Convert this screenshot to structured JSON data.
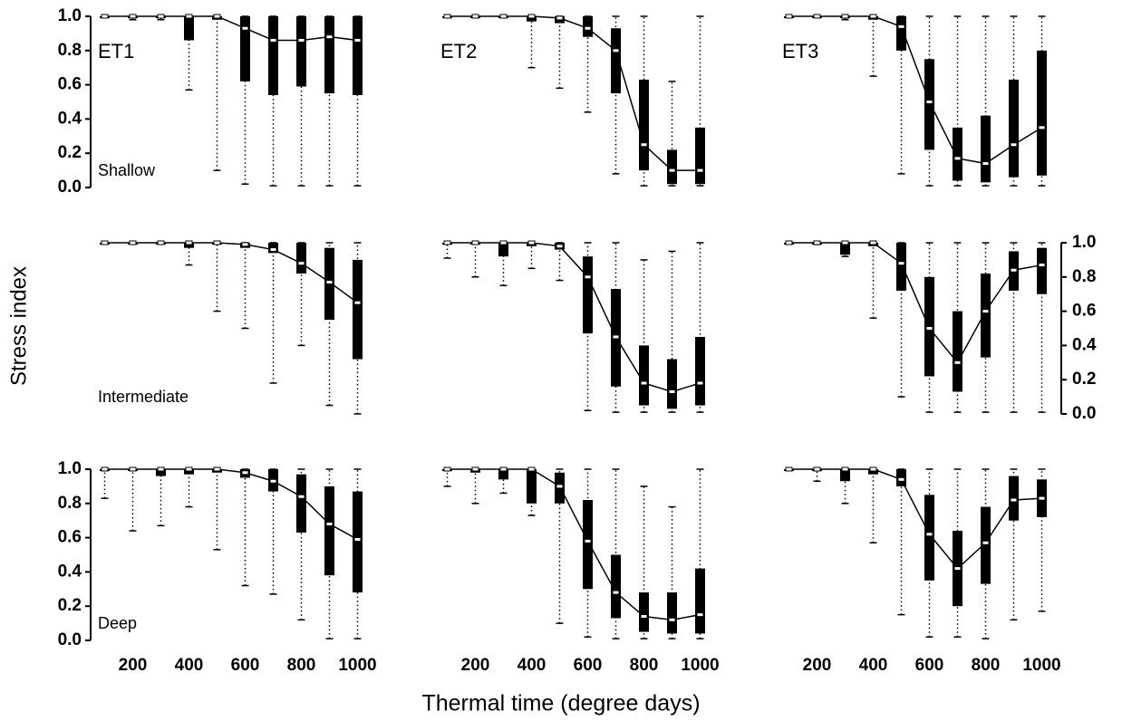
{
  "xlabel": "Thermal time (degree days)",
  "ylabel": "Stress index",
  "chart_data": [
    {
      "type": "box",
      "title": "ET1",
      "annotation": "Shallow",
      "x": [
        100,
        200,
        300,
        400,
        500,
        600,
        700,
        800,
        900,
        1000
      ],
      "median": [
        1,
        1,
        1,
        1,
        1,
        0.93,
        0.86,
        0.86,
        0.88,
        0.86
      ],
      "q1": [
        1,
        0.99,
        0.99,
        0.86,
        0.98,
        0.62,
        0.54,
        0.59,
        0.55,
        0.54
      ],
      "q3": [
        1,
        1,
        1,
        1,
        1,
        1,
        1,
        1,
        1,
        1
      ],
      "whisker_low": [
        1,
        0.98,
        0.98,
        0.57,
        0.1,
        0.02,
        0.01,
        0.01,
        0.01,
        0.01
      ],
      "whisker_high": [
        1,
        1,
        1,
        1,
        1,
        1,
        1,
        1,
        1,
        1
      ],
      "xlim": [
        50,
        1050
      ],
      "ylim": [
        0,
        1
      ],
      "yticks": [
        {
          "value": 0,
          "label": "0.0"
        },
        {
          "value": 0.2,
          "label": "0.2"
        },
        {
          "value": 0.4,
          "label": "0.4"
        },
        {
          "value": 0.6,
          "label": "0.6"
        },
        {
          "value": 0.8,
          "label": "0.8"
        },
        {
          "value": 1,
          "label": "1.0"
        }
      ],
      "yaxis_side": "left"
    },
    {
      "type": "box",
      "title": "ET2",
      "x": [
        100,
        200,
        300,
        400,
        500,
        600,
        700,
        800,
        900,
        1000
      ],
      "median": [
        1,
        1,
        1,
        1,
        0.99,
        0.93,
        0.8,
        0.25,
        0.1,
        0.1
      ],
      "q1": [
        1,
        1,
        1,
        0.97,
        0.96,
        0.88,
        0.55,
        0.1,
        0.02,
        0.02
      ],
      "q3": [
        1,
        1,
        1,
        1,
        1,
        1,
        0.93,
        0.63,
        0.22,
        0.35
      ],
      "whisker_low": [
        1,
        1,
        1,
        0.7,
        0.58,
        0.44,
        0.08,
        0.01,
        0.01,
        0.01
      ],
      "whisker_high": [
        1,
        1,
        1,
        1,
        1,
        1,
        1,
        1,
        0.62,
        1
      ],
      "xlim": [
        50,
        1050
      ],
      "ylim": [
        0,
        1
      ]
    },
    {
      "type": "box",
      "title": "ET3",
      "x": [
        100,
        200,
        300,
        400,
        500,
        600,
        700,
        800,
        900,
        1000
      ],
      "median": [
        1,
        1,
        1,
        1,
        0.94,
        0.5,
        0.17,
        0.14,
        0.25,
        0.35
      ],
      "q1": [
        1,
        1,
        0.99,
        0.98,
        0.8,
        0.22,
        0.04,
        0.03,
        0.06,
        0.07
      ],
      "q3": [
        1,
        1,
        1,
        1,
        1,
        0.75,
        0.35,
        0.42,
        0.63,
        0.8
      ],
      "whisker_low": [
        1,
        1,
        0.98,
        0.65,
        0.08,
        0.01,
        0.01,
        0.01,
        0.01,
        0.01
      ],
      "whisker_high": [
        1,
        1,
        1,
        1,
        1,
        1,
        1,
        1,
        1,
        1
      ],
      "xlim": [
        50,
        1050
      ],
      "ylim": [
        0,
        1
      ]
    },
    {
      "type": "box",
      "annotation": "Intermediate",
      "x": [
        100,
        200,
        300,
        400,
        500,
        600,
        700,
        800,
        900,
        1000
      ],
      "median": [
        1,
        1,
        1,
        1,
        1,
        0.99,
        0.96,
        0.88,
        0.77,
        0.65
      ],
      "q1": [
        1,
        1,
        1,
        0.97,
        0.99,
        0.97,
        0.94,
        0.82,
        0.55,
        0.32
      ],
      "q3": [
        1,
        1,
        1,
        1,
        1,
        1,
        1,
        1,
        0.97,
        0.9
      ],
      "whisker_low": [
        1,
        1,
        1,
        0.87,
        0.6,
        0.5,
        0.18,
        0.4,
        0.05,
        0
      ],
      "whisker_high": [
        1,
        1,
        1,
        1,
        1,
        1,
        1,
        1,
        1,
        1
      ],
      "xlim": [
        50,
        1050
      ],
      "ylim": [
        0,
        1
      ]
    },
    {
      "type": "box",
      "x": [
        100,
        200,
        300,
        400,
        500,
        600,
        700,
        800,
        900,
        1000
      ],
      "median": [
        1,
        1,
        1,
        1,
        0.98,
        0.8,
        0.45,
        0.18,
        0.13,
        0.18
      ],
      "q1": [
        1,
        1,
        0.92,
        0.98,
        0.96,
        0.47,
        0.16,
        0.05,
        0.03,
        0.05
      ],
      "q3": [
        1,
        1,
        1,
        1,
        1,
        0.92,
        0.73,
        0.4,
        0.32,
        0.45
      ],
      "whisker_low": [
        0.91,
        0.8,
        0.75,
        0.85,
        0.78,
        0.02,
        0.01,
        0.01,
        0.01,
        0.01
      ],
      "whisker_high": [
        1,
        1,
        1,
        1,
        1,
        1,
        1,
        0.9,
        0.95,
        1
      ],
      "xlim": [
        50,
        1050
      ],
      "ylim": [
        0,
        1
      ]
    },
    {
      "type": "box",
      "x": [
        100,
        200,
        300,
        400,
        500,
        600,
        700,
        800,
        900,
        1000
      ],
      "median": [
        1,
        1,
        1,
        1,
        0.88,
        0.5,
        0.3,
        0.6,
        0.84,
        0.87
      ],
      "q1": [
        1,
        0.99,
        0.93,
        0.98,
        0.72,
        0.22,
        0.13,
        0.33,
        0.72,
        0.7
      ],
      "q3": [
        1,
        1,
        1,
        1,
        1,
        0.8,
        0.6,
        0.82,
        0.95,
        0.97
      ],
      "whisker_low": [
        1,
        0.99,
        0.92,
        0.56,
        0.1,
        0.01,
        0.01,
        0.01,
        0.01,
        0.01
      ],
      "whisker_high": [
        1,
        1,
        1,
        1,
        1,
        1,
        1,
        1,
        1,
        1
      ],
      "xlim": [
        50,
        1050
      ],
      "ylim": [
        0,
        1
      ],
      "yticks": [
        {
          "value": 0,
          "label": "0.0"
        },
        {
          "value": 0.2,
          "label": "0.2"
        },
        {
          "value": 0.4,
          "label": "0.4"
        },
        {
          "value": 0.6,
          "label": "0.6"
        },
        {
          "value": 0.8,
          "label": "0.8"
        },
        {
          "value": 1,
          "label": "1.0"
        }
      ],
      "yaxis_side": "right"
    },
    {
      "type": "box",
      "annotation": "Deep",
      "x": [
        100,
        200,
        300,
        400,
        500,
        600,
        700,
        800,
        900,
        1000
      ],
      "median": [
        1,
        1,
        1,
        1,
        1,
        0.98,
        0.93,
        0.84,
        0.68,
        0.59
      ],
      "q1": [
        1,
        1,
        0.96,
        0.97,
        0.98,
        0.95,
        0.87,
        0.63,
        0.38,
        0.28
      ],
      "q3": [
        1,
        1,
        1,
        1,
        1,
        1,
        1,
        0.97,
        0.9,
        0.87
      ],
      "whisker_low": [
        0.83,
        0.64,
        0.67,
        0.78,
        0.53,
        0.32,
        0.27,
        0.12,
        0.01,
        0.01
      ],
      "whisker_high": [
        1,
        1,
        1,
        1,
        1,
        1,
        1,
        1,
        1,
        1
      ],
      "xlim": [
        50,
        1050
      ],
      "ylim": [
        0,
        1
      ],
      "yticks": [
        {
          "value": 0,
          "label": "0.0"
        },
        {
          "value": 0.2,
          "label": "0.2"
        },
        {
          "value": 0.4,
          "label": "0.4"
        },
        {
          "value": 0.6,
          "label": "0.6"
        },
        {
          "value": 0.8,
          "label": "0.8"
        },
        {
          "value": 1,
          "label": "1.0"
        }
      ],
      "yaxis_side": "left",
      "xticks": [
        200,
        400,
        600,
        800,
        1000
      ]
    },
    {
      "type": "box",
      "x": [
        100,
        200,
        300,
        400,
        500,
        600,
        700,
        800,
        900,
        1000
      ],
      "median": [
        1,
        1,
        1,
        1,
        0.9,
        0.58,
        0.28,
        0.14,
        0.12,
        0.15
      ],
      "q1": [
        1,
        0.98,
        0.94,
        0.8,
        0.8,
        0.3,
        0.13,
        0.05,
        0.04,
        0.04
      ],
      "q3": [
        1,
        1,
        1,
        1,
        0.98,
        0.82,
        0.5,
        0.28,
        0.28,
        0.42
      ],
      "whisker_low": [
        0.9,
        0.8,
        0.86,
        0.73,
        0.1,
        0.02,
        0.01,
        0.01,
        0.01,
        0.01
      ],
      "whisker_high": [
        1,
        1,
        1,
        1,
        1,
        1,
        1,
        0.9,
        0.78,
        1
      ],
      "xlim": [
        50,
        1050
      ],
      "ylim": [
        0,
        1
      ],
      "xticks": [
        200,
        400,
        600,
        800,
        1000
      ]
    },
    {
      "type": "box",
      "x": [
        100,
        200,
        300,
        400,
        500,
        600,
        700,
        800,
        900,
        1000
      ],
      "median": [
        1,
        1,
        1,
        1,
        0.94,
        0.62,
        0.42,
        0.57,
        0.82,
        0.83
      ],
      "q1": [
        1,
        1,
        0.93,
        0.97,
        0.9,
        0.35,
        0.2,
        0.33,
        0.7,
        0.72
      ],
      "q3": [
        1,
        1,
        1,
        1,
        1,
        0.85,
        0.64,
        0.78,
        0.96,
        0.94
      ],
      "whisker_low": [
        1,
        0.93,
        0.8,
        0.57,
        0.15,
        0.02,
        0.02,
        0.01,
        0.12,
        0.17
      ],
      "whisker_high": [
        1,
        1,
        1,
        1,
        1,
        1,
        1,
        1,
        1,
        1
      ],
      "xlim": [
        50,
        1050
      ],
      "ylim": [
        0,
        1
      ],
      "xticks": [
        200,
        400,
        600,
        800,
        1000
      ]
    }
  ]
}
